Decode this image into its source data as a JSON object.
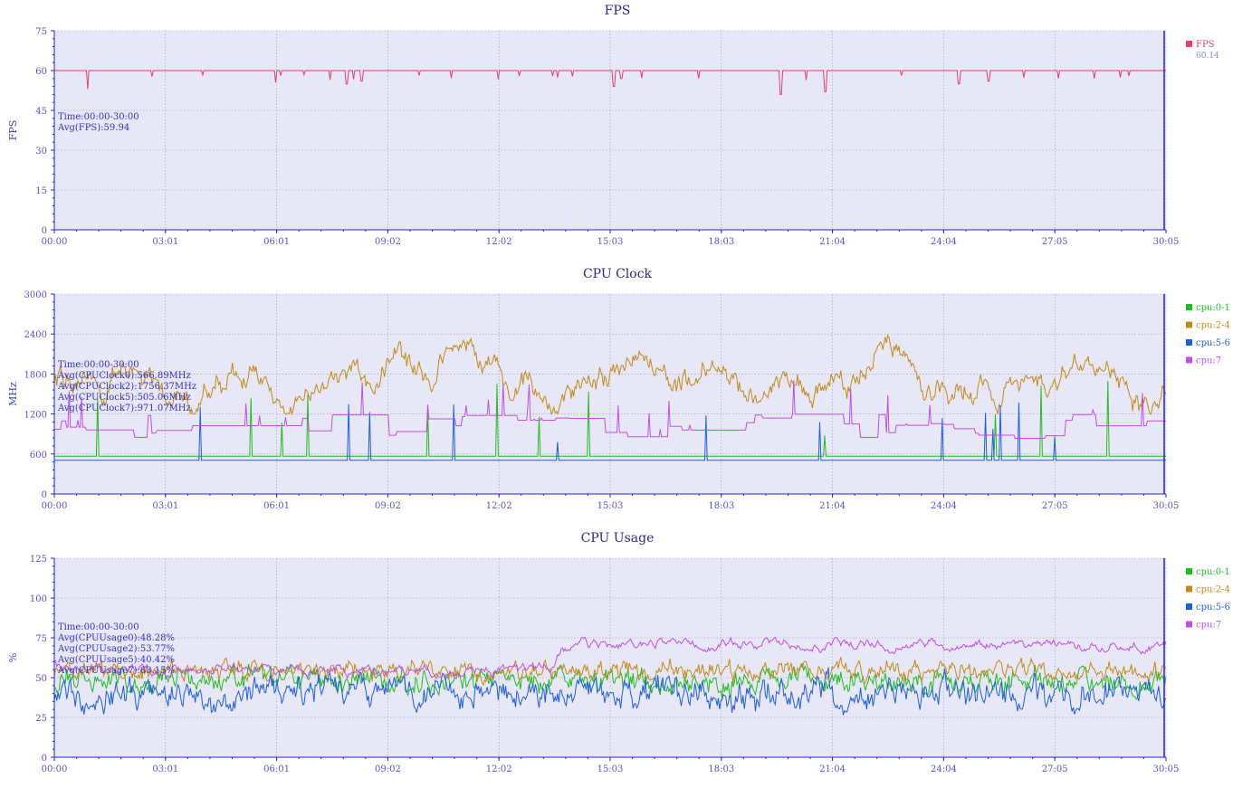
{
  "x_ticks": [
    "00:00",
    "03:01",
    "06:01",
    "09:02",
    "12:02",
    "15:03",
    "18:03",
    "21:04",
    "24:04",
    "27:05",
    "30:05"
  ],
  "chart_data": [
    {
      "type": "line",
      "title": "FPS",
      "ylabel": "FPS",
      "ylim": [
        0,
        75
      ],
      "yticks": [
        0,
        15,
        30,
        45,
        60,
        75
      ],
      "grid": true,
      "legend": "right",
      "annotation": [
        "Time:00:00-30:00",
        "Avg(FPS):59.94"
      ],
      "x_range": [
        "00:00",
        "30:05"
      ],
      "series": [
        {
          "name": "FPS",
          "legend_sub": "60.14",
          "color": "#e0406a",
          "base": 60,
          "noise": 0.4,
          "spike_prob": 0.03,
          "spike_depth": 3,
          "seed": 11,
          "dips": [
            [
              0.9,
              53
            ],
            [
              7.9,
              55
            ],
            [
              8.3,
              56
            ],
            [
              15.1,
              54
            ],
            [
              15.3,
              57
            ],
            [
              19.6,
              51
            ],
            [
              20.8,
              52
            ],
            [
              24.4,
              55
            ],
            [
              25.2,
              56
            ],
            [
              27.1,
              57
            ],
            [
              29.0,
              58
            ]
          ]
        }
      ]
    },
    {
      "type": "line",
      "title": "CPU Clock",
      "ylabel": "MHz",
      "ylim": [
        0,
        3000
      ],
      "yticks": [
        0,
        600,
        1200,
        1800,
        2400,
        3000
      ],
      "grid": true,
      "legend": "right",
      "annotation": [
        "Time:00:00-30:00",
        "Avg(CPUClock0):566.89MHz",
        "Avg(CPUClock2):1756.37MHz",
        "Avg(CPUClock5):505.06MHz",
        "Avg(CPUClock7):971.07MHz"
      ],
      "x_range": [
        "00:00",
        "30:05"
      ],
      "series": [
        {
          "name": "cpu:0-1",
          "color": "#22bb22",
          "base": 566,
          "noise": 0,
          "spike_prob": 0.012,
          "spike_height": 700,
          "seed": 21,
          "kind": "spiky"
        },
        {
          "name": "cpu:2-4",
          "color": "#c08a1e",
          "base": 1756,
          "noise": 180,
          "seed": 22,
          "kind": "wander",
          "min": 1200,
          "max": 2450
        },
        {
          "name": "cpu:5-6",
          "color": "#1f5fd6",
          "base": 505,
          "noise": 0,
          "spike_prob": 0.01,
          "spike_height": 500,
          "seed": 23,
          "kind": "spiky"
        },
        {
          "name": "cpu:7",
          "color": "#c050e0",
          "base": 971,
          "noise": 120,
          "seed": 24,
          "kind": "steps",
          "min": 800,
          "max": 1750
        }
      ]
    },
    {
      "type": "line",
      "title": "CPU Usage",
      "ylabel": "%",
      "ylim": [
        0,
        125
      ],
      "yticks": [
        0,
        25,
        50,
        75,
        100,
        125
      ],
      "grid": true,
      "legend": "right",
      "annotation": [
        "Time:00:00-30:00",
        "Avg(CPUUsage0):48.28%",
        "Avg(CPUUsage2):53.77%",
        "Avg(CPUUsage5):40.42%",
        "Avg(CPUUsage7):63.15%"
      ],
      "x_range": [
        "00:00",
        "30:05"
      ],
      "series": [
        {
          "name": "cpu:0-1",
          "color": "#22bb22",
          "base": 48.28,
          "noise": 5,
          "seed": 31,
          "kind": "noisy"
        },
        {
          "name": "cpu:2-4",
          "color": "#c08a1e",
          "base": 53.77,
          "noise": 4,
          "seed": 32,
          "kind": "noisy"
        },
        {
          "name": "cpu:5-6",
          "color": "#1f5fd6",
          "base": 40.42,
          "noise": 6,
          "seed": 33,
          "kind": "noisy"
        },
        {
          "name": "cpu:7",
          "color": "#c050e0",
          "base": 63.15,
          "noise": 5,
          "seed": 34,
          "kind": "usage7"
        }
      ]
    }
  ]
}
